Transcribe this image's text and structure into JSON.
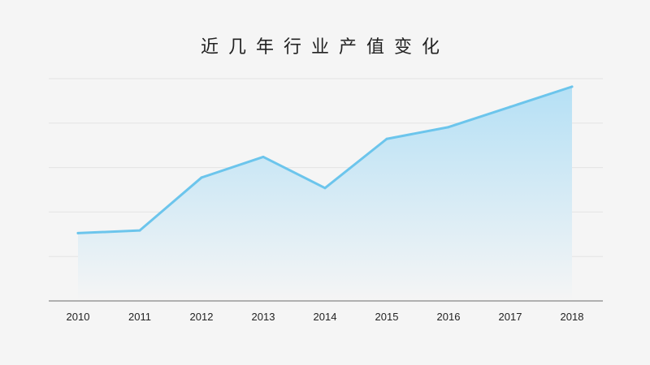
{
  "chart_data": {
    "type": "area",
    "title": "近几年行业产值变化",
    "xlabel": "",
    "ylabel": "",
    "categories": [
      "2010",
      "2011",
      "2012",
      "2013",
      "2014",
      "2015",
      "2016",
      "2017",
      "2018"
    ],
    "series": [
      {
        "values": [
          30.5,
          31.7,
          55.5,
          64.8,
          50.8,
          72.9,
          78.2,
          87.3,
          96.4
        ]
      }
    ],
    "ylim": [
      0,
      100
    ],
    "y_ticks_labeled": false,
    "grid": true,
    "legend": "none",
    "colors": {
      "line": "#6cc5ec",
      "fill_top": "#b5e0f5",
      "fill_bottom": "#f5f5f5",
      "grid": "#e3e3e3",
      "axis": "#9a9a9a"
    }
  }
}
